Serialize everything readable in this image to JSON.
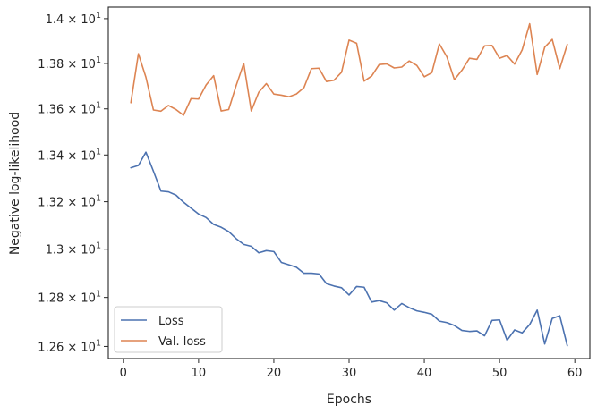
{
  "chart_data": {
    "type": "line",
    "title": "",
    "xlabel": "Epochs",
    "ylabel": "Negative log-likelihood",
    "xlim": [
      -2,
      62
    ],
    "ylim": [
      12.551,
      14.052
    ],
    "yscale": "log",
    "grid": false,
    "legend_position": "lower-left",
    "x_ticks": [
      0,
      10,
      20,
      30,
      40,
      50,
      60
    ],
    "x_tick_labels": [
      "0",
      "10",
      "20",
      "30",
      "40",
      "50",
      "60"
    ],
    "y_ticks": [
      12.6,
      12.8,
      13.0,
      13.2,
      13.4,
      13.6,
      13.8,
      14.0
    ],
    "y_tick_labels": [
      {
        "mantissa": "1.26",
        "exponent": "1"
      },
      {
        "mantissa": "1.28",
        "exponent": "1"
      },
      {
        "mantissa": "1.3",
        "exponent": "1"
      },
      {
        "mantissa": "1.32",
        "exponent": "1"
      },
      {
        "mantissa": "1.34",
        "exponent": "1"
      },
      {
        "mantissa": "1.36",
        "exponent": "1"
      },
      {
        "mantissa": "1.38",
        "exponent": "1"
      },
      {
        "mantissa": "1.4",
        "exponent": "1"
      }
    ],
    "series": [
      {
        "name": "Loss",
        "color": "#4c72b0",
        "x": [
          1,
          2,
          3,
          4,
          5,
          6,
          7,
          8,
          9,
          10,
          11,
          12,
          13,
          14,
          15,
          16,
          17,
          18,
          19,
          20,
          21,
          22,
          23,
          24,
          25,
          26,
          27,
          28,
          29,
          30,
          31,
          32,
          33,
          34,
          35,
          36,
          37,
          38,
          39,
          40,
          41,
          42,
          43,
          44,
          45,
          46,
          47,
          48,
          49,
          50,
          51,
          52,
          53,
          54,
          55,
          56,
          57,
          58,
          59
        ],
        "values": [
          13.345,
          13.355,
          13.412,
          13.33,
          13.245,
          13.242,
          13.228,
          13.198,
          13.173,
          13.148,
          13.133,
          13.104,
          13.092,
          13.074,
          13.044,
          13.02,
          13.012,
          12.985,
          12.994,
          12.99,
          12.945,
          12.935,
          12.925,
          12.9,
          12.9,
          12.897,
          12.857,
          12.847,
          12.84,
          12.81,
          12.845,
          12.842,
          12.781,
          12.787,
          12.778,
          12.748,
          12.775,
          12.758,
          12.745,
          12.739,
          12.731,
          12.703,
          12.697,
          12.685,
          12.665,
          12.661,
          12.663,
          12.643,
          12.706,
          12.708,
          12.625,
          12.667,
          12.655,
          12.689,
          12.748,
          12.61,
          12.714,
          12.725,
          12.603
        ]
      },
      {
        "name": "Val. loss",
        "color": "#dd8452",
        "x": [
          1,
          2,
          3,
          4,
          5,
          6,
          7,
          8,
          9,
          10,
          11,
          12,
          13,
          14,
          15,
          16,
          17,
          18,
          19,
          20,
          21,
          22,
          23,
          24,
          25,
          26,
          27,
          28,
          29,
          30,
          31,
          32,
          33,
          34,
          35,
          36,
          37,
          38,
          39,
          40,
          41,
          42,
          43,
          44,
          45,
          46,
          47,
          48,
          49,
          50,
          51,
          52,
          53,
          54,
          55,
          56,
          57,
          58,
          59
        ],
        "values": [
          13.627,
          13.843,
          13.739,
          13.595,
          13.59,
          13.615,
          13.597,
          13.572,
          13.645,
          13.643,
          13.705,
          13.746,
          13.591,
          13.597,
          13.703,
          13.8,
          13.591,
          13.673,
          13.711,
          13.665,
          13.66,
          13.653,
          13.665,
          13.693,
          13.777,
          13.779,
          13.72,
          13.726,
          13.761,
          13.904,
          13.89,
          13.722,
          13.744,
          13.795,
          13.798,
          13.78,
          13.784,
          13.811,
          13.791,
          13.741,
          13.759,
          13.887,
          13.829,
          13.728,
          13.77,
          13.823,
          13.818,
          13.878,
          13.88,
          13.823,
          13.835,
          13.797,
          13.86,
          13.977,
          13.751,
          13.872,
          13.907,
          13.777,
          13.885
        ]
      }
    ]
  }
}
